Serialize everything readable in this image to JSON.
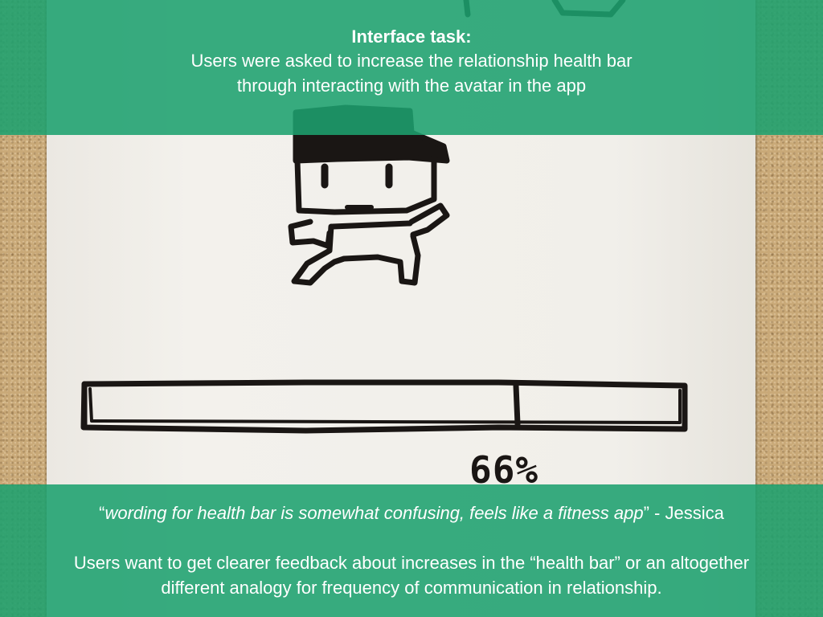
{
  "top_banner": {
    "title": "Interface task:",
    "line_1": "Users were asked to increase the relationship health bar",
    "line_2": "through interacting with the avatar in the app"
  },
  "sketch": {
    "health_bar_label": "66%",
    "health_bar_percent": 66
  },
  "bottom_banner": {
    "quote_open": "“",
    "quote_text": "wording for health bar is somewhat confusing, feels like a fitness app",
    "quote_close": "” - Jessica",
    "finding_line_1": "Users want to get clearer feedback about increases in the “health bar” or an altogether",
    "finding_line_2": "different analogy for frequency of communication in relationship."
  },
  "colors": {
    "banner_green": "#1ca06e",
    "ink": "#1a1614",
    "paper": "#f1efea",
    "cork": "#c9a978"
  }
}
